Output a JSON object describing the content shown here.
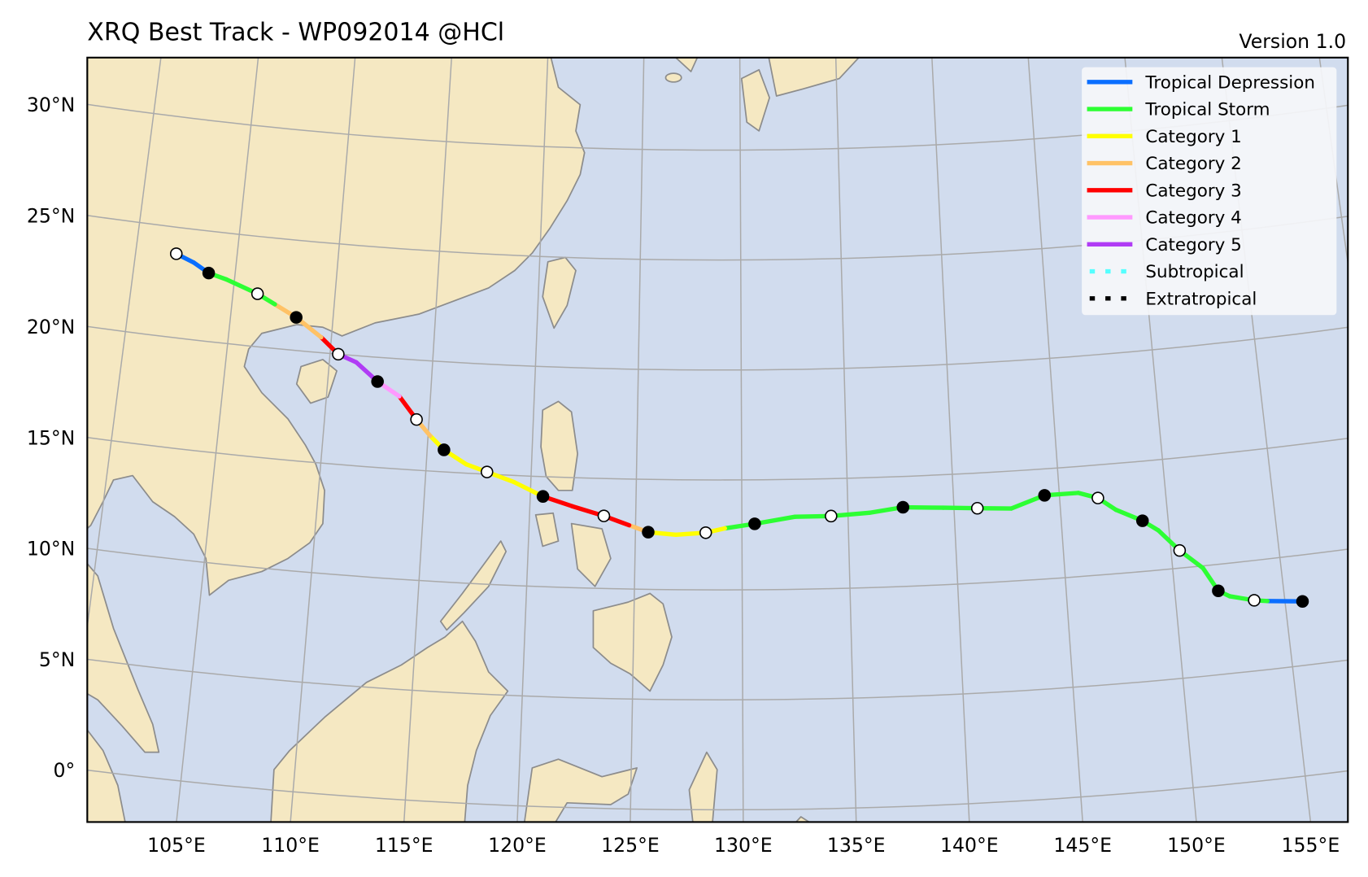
{
  "header": {
    "title": "XRQ Best Track - WP092014  @HCl",
    "version": "Version 1.0"
  },
  "colors": {
    "ocean": "#d1dcee",
    "land": "#f5e8c2",
    "coast": "#8c8c8c",
    "grid": "#aaaaaa"
  },
  "legend": {
    "placement": "top-right",
    "entries": [
      {
        "key": "TD",
        "label": "Tropical Depression",
        "color": "#0a6eff",
        "style": "solid"
      },
      {
        "key": "TS",
        "label": "Tropical Storm",
        "color": "#2dff33",
        "style": "solid"
      },
      {
        "key": "C1",
        "label": "Category 1",
        "color": "#ffff00",
        "style": "solid"
      },
      {
        "key": "C2",
        "label": "Category 2",
        "color": "#ffc266",
        "style": "solid"
      },
      {
        "key": "C3",
        "label": "Category 3",
        "color": "#ff0000",
        "style": "solid"
      },
      {
        "key": "C4",
        "label": "Category 4",
        "color": "#ff99ff",
        "style": "solid"
      },
      {
        "key": "C5",
        "label": "Category 5",
        "color": "#b03cf5",
        "style": "solid"
      },
      {
        "key": "SS",
        "label": "Subtropical",
        "color": "#55ffff",
        "style": "dotted"
      },
      {
        "key": "EX",
        "label": "Extratropical",
        "color": "#000000",
        "style": "dotted"
      }
    ]
  },
  "axes": {
    "lat_labels": [
      {
        "lat": 0,
        "label": "0°"
      },
      {
        "lat": 5,
        "label": "5°N"
      },
      {
        "lat": 10,
        "label": "10°N"
      },
      {
        "lat": 15,
        "label": "15°N"
      },
      {
        "lat": 20,
        "label": "20°N"
      },
      {
        "lat": 25,
        "label": "25°N"
      },
      {
        "lat": 30,
        "label": "30°N"
      }
    ],
    "lon_labels": [
      {
        "lon": 105,
        "label": "105°E"
      },
      {
        "lon": 110,
        "label": "110°E"
      },
      {
        "lon": 115,
        "label": "115°E"
      },
      {
        "lon": 120,
        "label": "120°E"
      },
      {
        "lon": 125,
        "label": "125°E"
      },
      {
        "lon": 130,
        "label": "130°E"
      },
      {
        "lon": 135,
        "label": "135°E"
      },
      {
        "lon": 140,
        "label": "140°E"
      },
      {
        "lon": 145,
        "label": "145°E"
      },
      {
        "lon": 150,
        "label": "150°E"
      },
      {
        "lon": 155,
        "label": "155°E"
      }
    ]
  },
  "chart_data": {
    "type": "line",
    "projection": "conic",
    "grid": true,
    "lon_range": [
      101,
      158
    ],
    "lat_range": [
      -2,
      32
    ],
    "track": [
      {
        "lon": 155.8,
        "lat": 7.9,
        "cat": "TD",
        "marker": "filled"
      },
      {
        "lon": 154.2,
        "lat": 8.1,
        "cat": "TS",
        "marker": "none"
      },
      {
        "lon": 153.6,
        "lat": 8.2,
        "cat": "TS",
        "marker": "open"
      },
      {
        "lon": 152.5,
        "lat": 8.5,
        "cat": "TS",
        "marker": "none"
      },
      {
        "lon": 152.0,
        "lat": 8.8,
        "cat": "TS",
        "marker": "filled"
      },
      {
        "lon": 151.4,
        "lat": 9.9,
        "cat": "TS",
        "marker": "none"
      },
      {
        "lon": 150.4,
        "lat": 10.8,
        "cat": "TS",
        "marker": "open"
      },
      {
        "lon": 149.5,
        "lat": 11.8,
        "cat": "TS",
        "marker": "none"
      },
      {
        "lon": 148.8,
        "lat": 12.3,
        "cat": "TS",
        "marker": "filled"
      },
      {
        "lon": 147.6,
        "lat": 12.9,
        "cat": "TS",
        "marker": "none"
      },
      {
        "lon": 146.8,
        "lat": 13.5,
        "cat": "TS",
        "marker": "open"
      },
      {
        "lon": 145.9,
        "lat": 13.8,
        "cat": "TS",
        "marker": "none"
      },
      {
        "lon": 144.3,
        "lat": 13.8,
        "cat": "TS",
        "marker": "filled"
      },
      {
        "lon": 142.7,
        "lat": 13.3,
        "cat": "TS",
        "marker": "none"
      },
      {
        "lon": 141.1,
        "lat": 13.4,
        "cat": "TS",
        "marker": "open"
      },
      {
        "lon": 139.5,
        "lat": 13.5,
        "cat": "TS",
        "marker": "none"
      },
      {
        "lon": 137.6,
        "lat": 13.6,
        "cat": "TS",
        "marker": "filled"
      },
      {
        "lon": 136.0,
        "lat": 13.4,
        "cat": "TS",
        "marker": "none"
      },
      {
        "lon": 134.2,
        "lat": 13.3,
        "cat": "TS",
        "marker": "open"
      },
      {
        "lon": 132.5,
        "lat": 13.3,
        "cat": "TS",
        "marker": "none"
      },
      {
        "lon": 130.6,
        "lat": 13.0,
        "cat": "TS",
        "marker": "filled"
      },
      {
        "lon": 129.2,
        "lat": 12.8,
        "cat": "C1",
        "marker": "none"
      },
      {
        "lon": 128.3,
        "lat": 12.6,
        "cat": "C1",
        "marker": "open"
      },
      {
        "lon": 126.9,
        "lat": 12.5,
        "cat": "C1",
        "marker": "none"
      },
      {
        "lon": 125.6,
        "lat": 12.6,
        "cat": "C2",
        "marker": "filled"
      },
      {
        "lon": 124.7,
        "lat": 12.9,
        "cat": "C3",
        "marker": "none"
      },
      {
        "lon": 123.5,
        "lat": 13.3,
        "cat": "C3",
        "marker": "open"
      },
      {
        "lon": 122.0,
        "lat": 13.7,
        "cat": "C3",
        "marker": "none"
      },
      {
        "lon": 120.6,
        "lat": 14.1,
        "cat": "C1",
        "marker": "filled"
      },
      {
        "lon": 119.2,
        "lat": 14.7,
        "cat": "C1",
        "marker": "none"
      },
      {
        "lon": 117.9,
        "lat": 15.1,
        "cat": "C1",
        "marker": "open"
      },
      {
        "lon": 116.9,
        "lat": 15.4,
        "cat": "C1",
        "marker": "none"
      },
      {
        "lon": 115.8,
        "lat": 16.0,
        "cat": "C1",
        "marker": "filled"
      },
      {
        "lon": 115.1,
        "lat": 16.6,
        "cat": "C2",
        "marker": "none"
      },
      {
        "lon": 114.4,
        "lat": 17.3,
        "cat": "C3",
        "marker": "open"
      },
      {
        "lon": 113.5,
        "lat": 18.3,
        "cat": "C4",
        "marker": "none"
      },
      {
        "lon": 112.4,
        "lat": 18.9,
        "cat": "C5",
        "marker": "filled"
      },
      {
        "lon": 111.3,
        "lat": 19.7,
        "cat": "C5",
        "marker": "none"
      },
      {
        "lon": 110.4,
        "lat": 20.0,
        "cat": "C3",
        "marker": "open"
      },
      {
        "lon": 109.5,
        "lat": 20.7,
        "cat": "C2",
        "marker": "none"
      },
      {
        "lon": 108.2,
        "lat": 21.5,
        "cat": "C2",
        "marker": "filled"
      },
      {
        "lon": 107.1,
        "lat": 22.0,
        "cat": "TS",
        "marker": "none"
      },
      {
        "lon": 106.2,
        "lat": 22.4,
        "cat": "TS",
        "marker": "open"
      },
      {
        "lon": 104.6,
        "lat": 22.9,
        "cat": "TS",
        "marker": "none"
      },
      {
        "lon": 103.7,
        "lat": 23.1,
        "cat": "TD",
        "marker": "filled"
      },
      {
        "lon": 102.9,
        "lat": 23.5,
        "cat": "TD",
        "marker": "none"
      },
      {
        "lon": 102.0,
        "lat": 23.8,
        "cat": "TD",
        "marker": "open"
      }
    ]
  }
}
